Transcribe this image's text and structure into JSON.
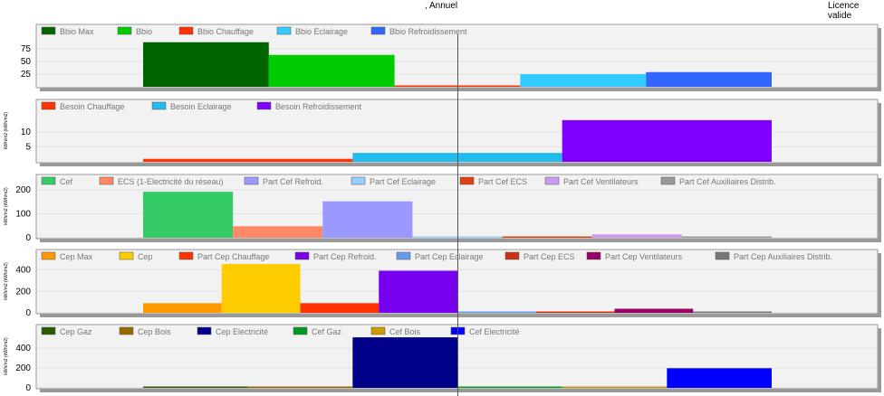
{
  "header": {
    "period_label": ", Annuel",
    "license_label": "Licence valide"
  },
  "colors": {
    "panel_bg": "#f2f2f2",
    "panel_border": "#9a9a9a",
    "shadow": "#999999",
    "grid": "#e2e2e2",
    "legend_text": "#777777",
    "tick_text": "#000000"
  },
  "chart_data": [
    {
      "type": "bar",
      "ylabel": "",
      "ylim": [
        0,
        100
      ],
      "yticks": [
        25,
        50,
        75
      ],
      "grid": true,
      "legend_position": "top-left",
      "series": [
        {
          "name": "Bbio Max",
          "color": "#006400",
          "value": 88
        },
        {
          "name": "Bbio",
          "color": "#00cc00",
          "value": 63
        },
        {
          "name": "Bbio Chauffage",
          "color": "#ff3300",
          "value": 2
        },
        {
          "name": "Bbio Eclairage",
          "color": "#33ccff",
          "value": 25
        },
        {
          "name": "Bbio Refroidissement",
          "color": "#3366ff",
          "value": 29
        }
      ]
    },
    {
      "type": "bar",
      "ylabel": "kWh/m2 (kWh/m2)",
      "ylim": [
        0,
        17
      ],
      "yticks": [
        5,
        10
      ],
      "grid": true,
      "legend_position": "top-left",
      "series": [
        {
          "name": "Besoin Chauffage",
          "color": "#ff3300",
          "value": 1
        },
        {
          "name": "Besoin Eclairage",
          "color": "#22bbee",
          "value": 3
        },
        {
          "name": "Besoin Refroidissement",
          "color": "#8000ff",
          "value": 14
        }
      ]
    },
    {
      "type": "bar",
      "ylabel": "kWh/m2 (kWh/m2)",
      "ylim": [
        0,
        215
      ],
      "yticks": [
        0,
        100,
        200
      ],
      "grid": true,
      "legend_position": "top-left",
      "series": [
        {
          "name": "Cef",
          "color": "#33cc66",
          "value": 192
        },
        {
          "name": "ECS (1-Electricité du réseau)",
          "color": "#ff8866",
          "value": 48
        },
        {
          "name": "Part Cef Refroid.",
          "color": "#9999ff",
          "value": 152
        },
        {
          "name": "Part Cef Eclairage",
          "color": "#99ccff",
          "value": 4
        },
        {
          "name": "Part Cef ECS",
          "color": "#dd4411",
          "value": 2
        },
        {
          "name": "Part Cef Ventilateurs",
          "color": "#cc99ee",
          "value": 14
        },
        {
          "name": "Part Cef Auxiliaires Distrib.",
          "color": "#999999",
          "value": 1
        }
      ]
    },
    {
      "type": "bar",
      "ylabel": "kWh/m2 (kWh/m2)",
      "ylim": [
        0,
        480
      ],
      "yticks": [
        0,
        200,
        400
      ],
      "grid": true,
      "legend_position": "top-left",
      "series": [
        {
          "name": "Cep Max",
          "color": "#ff9900",
          "value": 90
        },
        {
          "name": "Cep",
          "color": "#ffcc00",
          "value": 455
        },
        {
          "name": "Part Cep Chauffage",
          "color": "#ff3300",
          "value": 90
        },
        {
          "name": "Part Cep Refroid.",
          "color": "#7700ee",
          "value": 392
        },
        {
          "name": "Part Cep Eclairage",
          "color": "#6699ee",
          "value": 8
        },
        {
          "name": "Part Cep ECS",
          "color": "#cc3311",
          "value": 6
        },
        {
          "name": "Part Cep Ventilateurs",
          "color": "#990066",
          "value": 38
        },
        {
          "name": "Part Cep Auxiliaires Distrib.",
          "color": "#777777",
          "value": 3
        }
      ]
    },
    {
      "type": "bar",
      "ylabel": "kWh/m2 (kWh/m2)",
      "ylim": [
        0,
        520
      ],
      "yticks": [
        0,
        200,
        400
      ],
      "grid": true,
      "legend_position": "top-left",
      "series": [
        {
          "name": "Cep Gaz",
          "color": "#2d5a00",
          "value": 8
        },
        {
          "name": "Cep Bois",
          "color": "#996600",
          "value": 2
        },
        {
          "name": "Cep Electricité",
          "color": "#000088",
          "value": 510
        },
        {
          "name": "Cef Gaz",
          "color": "#009922",
          "value": 8
        },
        {
          "name": "Cef Bois",
          "color": "#cc9900",
          "value": 2
        },
        {
          "name": "Cef Electricité",
          "color": "#0000ff",
          "value": 198
        }
      ]
    }
  ]
}
